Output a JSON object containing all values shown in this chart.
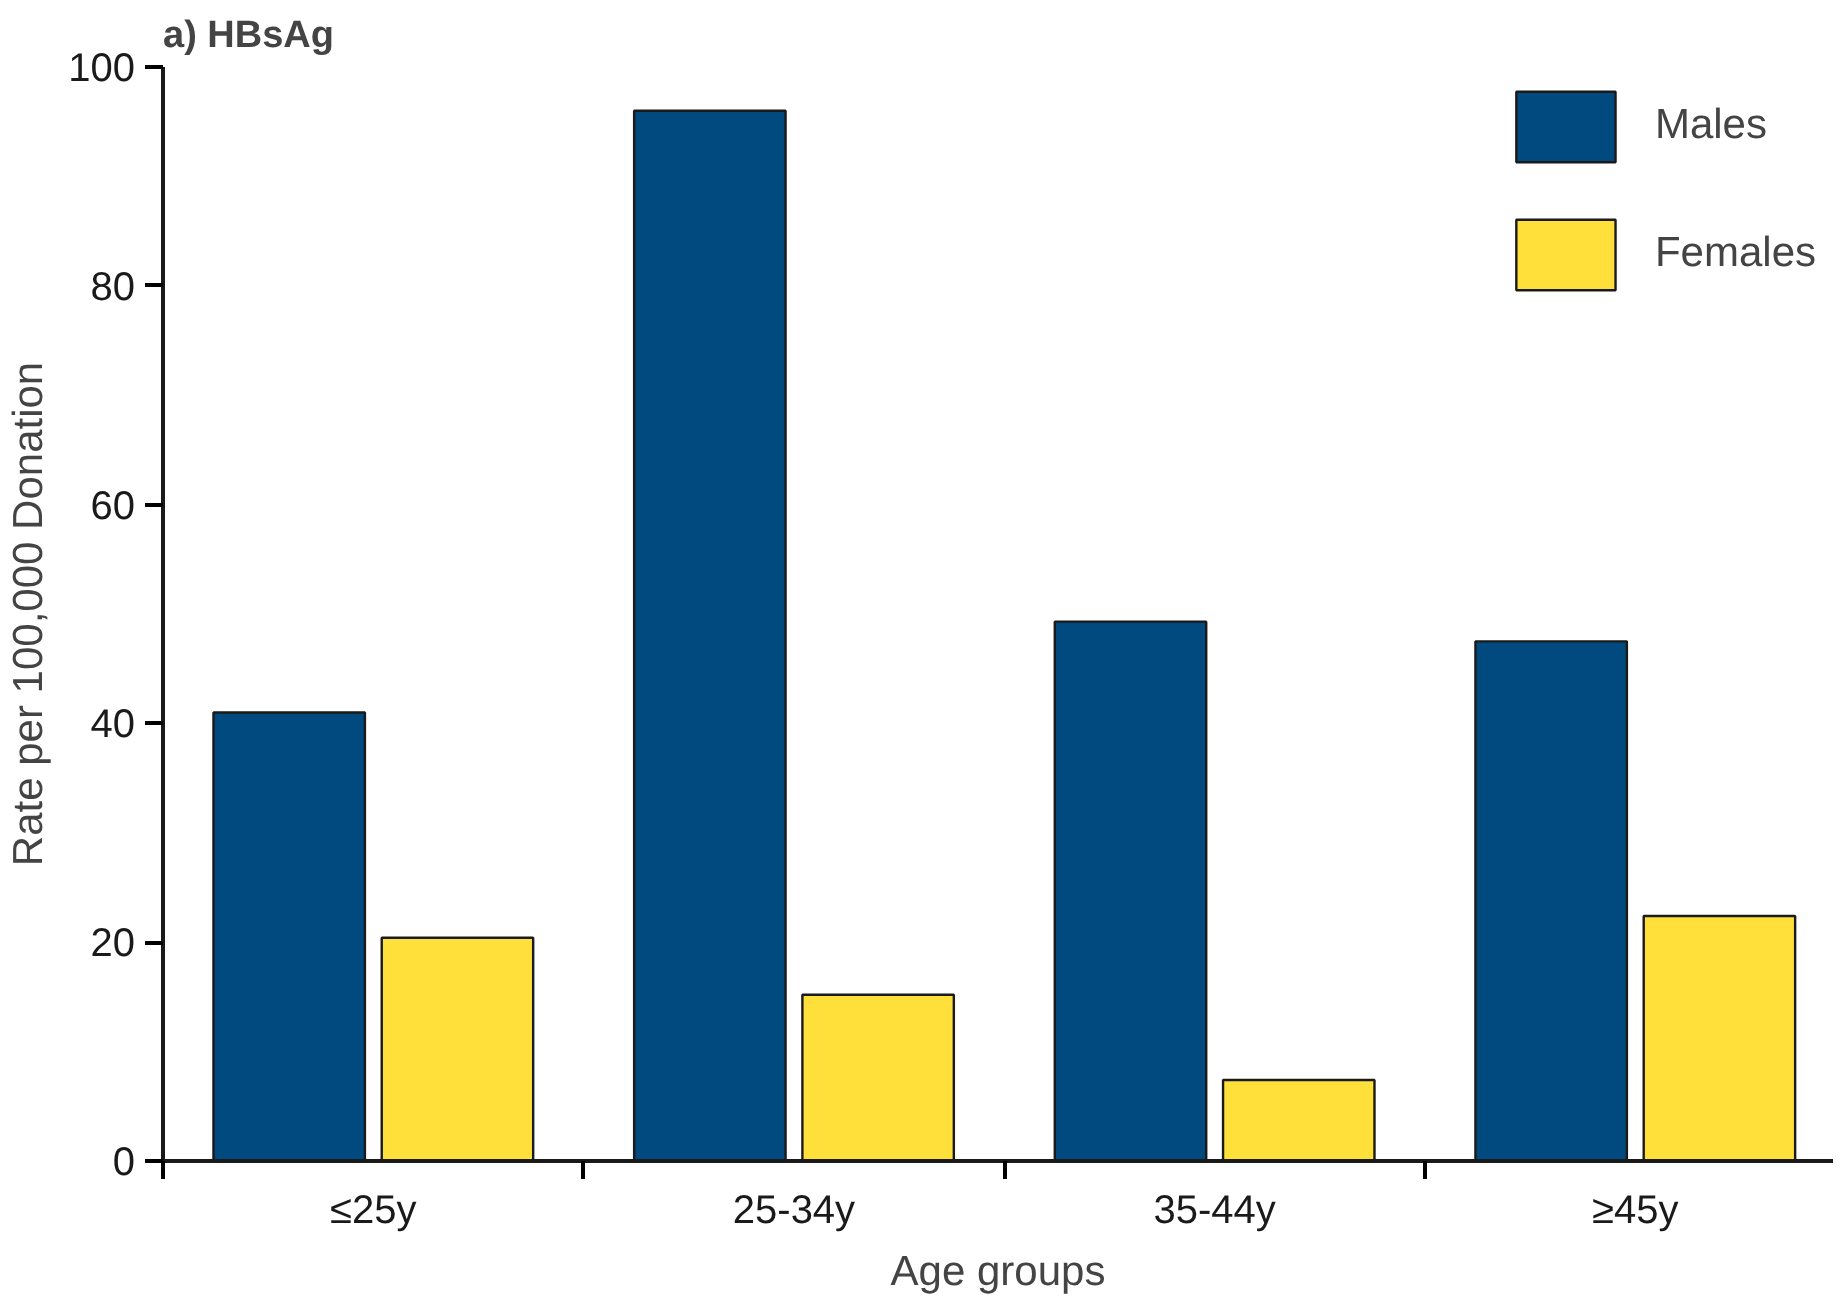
{
  "chart_data": {
    "type": "bar",
    "title": "a) HBsAg",
    "xlabel": "Age groups",
    "ylabel": "Rate per 100,000 Donation",
    "categories": [
      "≤25y",
      "25-34y",
      "35-44y",
      "≥45y"
    ],
    "series": [
      {
        "name": "Males",
        "color": "#004a80",
        "values": [
          41,
          96,
          49.3,
          47.5
        ]
      },
      {
        "name": "Females",
        "color": "#ffe03a",
        "values": [
          20.4,
          15.2,
          7.4,
          22.4
        ]
      }
    ],
    "ylim": [
      0,
      100
    ],
    "yticks": [
      0,
      20,
      40,
      60,
      80,
      100
    ],
    "grid": false,
    "legend": "top right"
  }
}
